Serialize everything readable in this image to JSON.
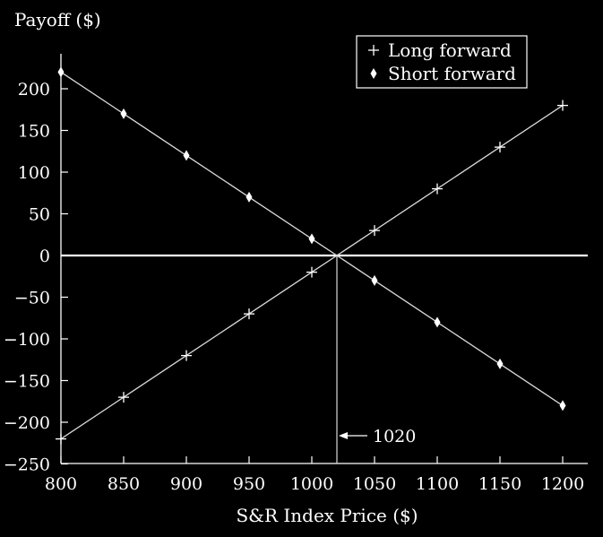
{
  "chart_data": {
    "type": "line",
    "ylabel": "Payoff ($)",
    "xlabel": "S&R Index Price ($)",
    "x": [
      800,
      850,
      900,
      950,
      1000,
      1050,
      1100,
      1150,
      1200
    ],
    "xlim": [
      800,
      1225
    ],
    "ylim": [
      -250,
      220
    ],
    "xticks": [
      800,
      850,
      900,
      950,
      1000,
      1050,
      1100,
      1150,
      1200
    ],
    "yticks": [
      200,
      150,
      100,
      50,
      0,
      -50,
      -100,
      -150,
      -200,
      -250
    ],
    "series": [
      {
        "name": "Long forward",
        "marker": "plus",
        "values": [
          -220,
          -170,
          -120,
          -70,
          -20,
          30,
          80,
          130,
          180
        ]
      },
      {
        "name": "Short forward",
        "marker": "diamond",
        "values": [
          220,
          170,
          120,
          70,
          20,
          -30,
          -80,
          -130,
          -180
        ]
      }
    ],
    "annotation": {
      "label": "1020",
      "x": 1020
    },
    "legend_position": "top-right",
    "grid": false,
    "colors": {
      "background": "#000000",
      "foreground": "#ffffff",
      "line": "#d9d9d9"
    }
  }
}
